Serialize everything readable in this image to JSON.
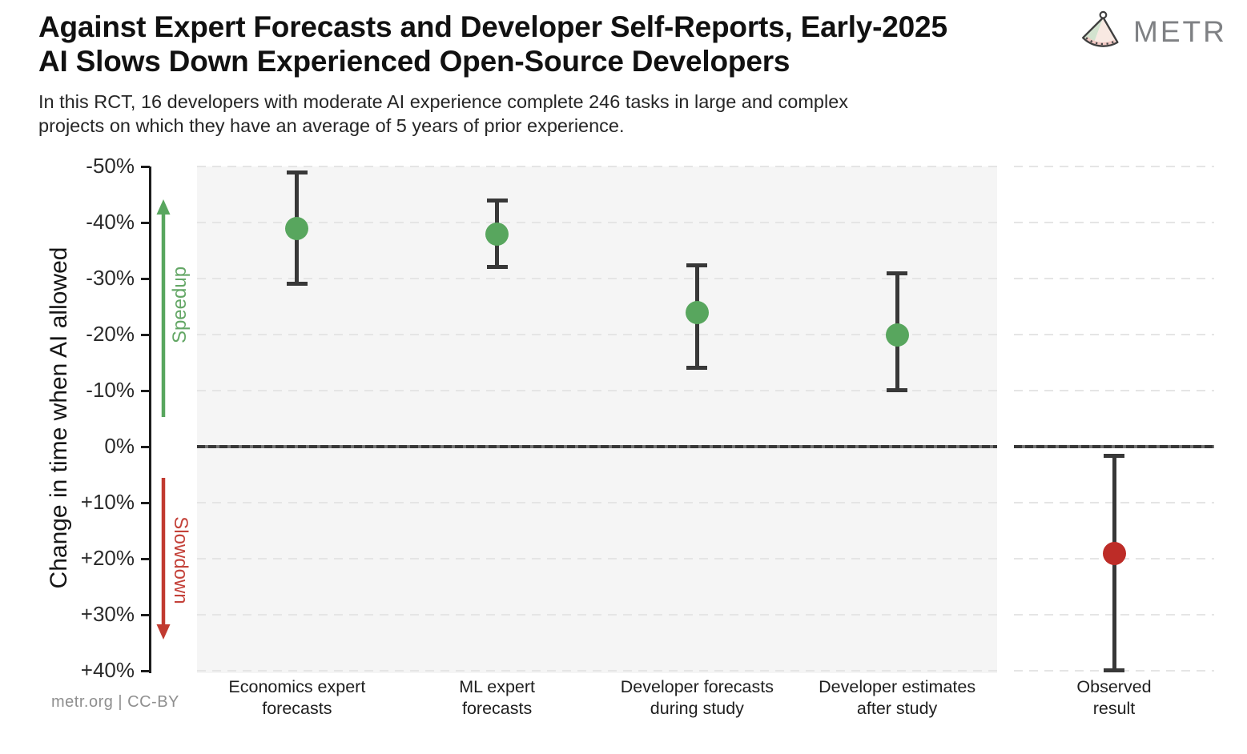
{
  "header": {
    "title_line1": "Against Expert Forecasts and Developer Self-Reports, Early-2025",
    "title_line2": "AI Slows Down Experienced Open-Source Developers",
    "subtitle_line1": "In this RCT, 16 developers with moderate AI experience complete 246 tasks in large and complex",
    "subtitle_line2": "projects on which they have an average of 5 years of prior experience.",
    "logo_text": "METR"
  },
  "footer": {
    "credit": "metr.org  |  CC-BY"
  },
  "colors": {
    "green": "#58a65e",
    "red": "#c13a30",
    "errorbar": "#383838",
    "grid": "#e5e5e5",
    "panel_bg": "#f5f5f5",
    "axis": "#1c1c1c",
    "text": "#111111",
    "muted": "#8f8f8f",
    "logo": "#7f8184"
  },
  "chart_data": {
    "type": "scatter",
    "title": "Against Expert Forecasts and Developer Self-Reports, Early-2025 AI Slows Down Experienced Open-Source Developers",
    "xlabel": "",
    "ylabel": "Change in time when AI allowed",
    "grid": true,
    "legend": false,
    "y_axis": {
      "min": -50,
      "max": 40,
      "orientation": "negative (speedup) plotted upward, positive (slowdown) plotted downward",
      "ticks": [
        {
          "label": "-50%",
          "value": -50
        },
        {
          "label": "-40%",
          "value": -40
        },
        {
          "label": "-30%",
          "value": -30
        },
        {
          "label": "-20%",
          "value": -20
        },
        {
          "label": "-10%",
          "value": -10
        },
        {
          "label": "0%",
          "value": 0
        },
        {
          "label": "+10%",
          "value": 10
        },
        {
          "label": "+20%",
          "value": 20
        },
        {
          "label": "+30%",
          "value": 30
        },
        {
          "label": "+40%",
          "value": 40
        }
      ]
    },
    "annotations": {
      "speedup_label": "Speedup",
      "slowdown_label": "Slowdown"
    },
    "series": [
      {
        "category": "Economics expert forecasts",
        "label_line1": "Economics expert",
        "label_line2": "forecasts",
        "value": -39,
        "ci": [
          -49,
          -29
        ],
        "color": "#58a65e",
        "panel": "left"
      },
      {
        "category": "ML expert forecasts",
        "label_line1": "ML expert",
        "label_line2": "forecasts",
        "value": -38,
        "ci": [
          -44,
          -32
        ],
        "color": "#58a65e",
        "panel": "left"
      },
      {
        "category": "Developer forecasts during study",
        "label_line1": "Developer forecasts",
        "label_line2": "during study",
        "value": -24,
        "ci": [
          -32.5,
          -14
        ],
        "color": "#58a65e",
        "panel": "left"
      },
      {
        "category": "Developer estimates after study",
        "label_line1": "Developer estimates",
        "label_line2": "after study",
        "value": -20,
        "ci": [
          -31,
          -10
        ],
        "color": "#58a65e",
        "panel": "left"
      },
      {
        "category": "Observed result",
        "label_line1": "Observed",
        "label_line2": "result",
        "value": 19,
        "ci": [
          1.5,
          40
        ],
        "color": "#bd2c27",
        "panel": "right"
      }
    ]
  }
}
